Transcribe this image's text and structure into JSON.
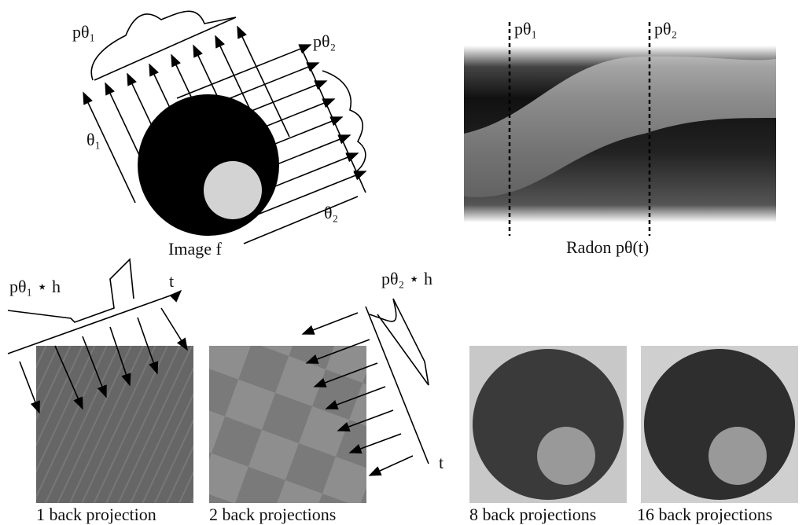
{
  "top_left": {
    "proj1_label": "pθ₁",
    "proj2_label": "pθ₂",
    "angle1_label": "θ₁",
    "angle2_label": "θ₂",
    "caption": "Image f"
  },
  "top_right": {
    "line1_label": "pθ₁",
    "line2_label": "pθ₂",
    "caption": "Radon pθ(t)"
  },
  "bottom": {
    "filter1_label": "pθ₁ ⋆ h",
    "axis1_label": "t",
    "filter2_label": "pθ₂ ⋆ h",
    "axis2_label": "t",
    "captions": [
      "1 back projection",
      "2 back projections",
      "8 back projections",
      "16 back projections"
    ]
  }
}
